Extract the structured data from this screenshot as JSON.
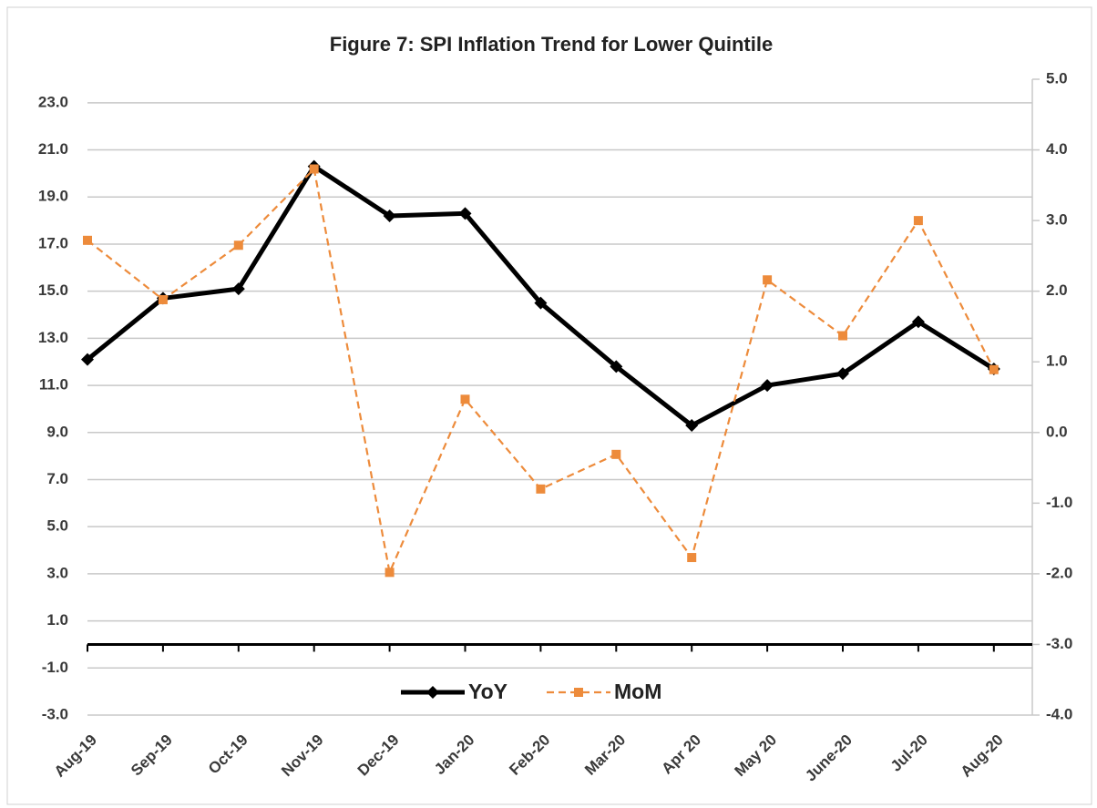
{
  "chart_data": {
    "type": "line",
    "title": "Figure 7: SPI Inflation Trend for Lower Quintile",
    "categories": [
      "Aug-19",
      "Sep-19",
      "Oct-19",
      "Nov-19",
      "Dec-19",
      "Jan-20",
      "Feb-20",
      "Mar-20",
      "Apr 20",
      "May 20",
      "June-20",
      "Jul-20",
      "Aug-20"
    ],
    "series": [
      {
        "name": "YoY",
        "color": "#000000",
        "values": [
          12.1,
          14.7,
          15.1,
          20.3,
          18.2,
          18.3,
          14.5,
          11.8,
          9.3,
          11.0,
          11.5,
          13.7,
          11.7
        ]
      },
      {
        "name": "MoM",
        "color": "#ed8b3b",
        "axis": "y2",
        "values": [
          2.72,
          1.88,
          2.65,
          3.73,
          -1.98,
          0.47,
          -0.8,
          -0.31,
          -1.77,
          2.16,
          1.37,
          3.0,
          0.89
        ]
      }
    ],
    "ylim": [
      -3,
      24
    ],
    "yticks": [
      {
        "value": 23,
        "label": "23.0"
      },
      {
        "value": 21,
        "label": "21.0"
      },
      {
        "value": 19,
        "label": "19.0"
      },
      {
        "value": 17,
        "label": "17.0"
      },
      {
        "value": 15,
        "label": "15.0"
      },
      {
        "value": 13,
        "label": "13.0"
      },
      {
        "value": 11,
        "label": "11.0"
      },
      {
        "value": 9,
        "label": "9.0"
      },
      {
        "value": 7,
        "label": "7.0"
      },
      {
        "value": 5,
        "label": "5.0"
      },
      {
        "value": 3,
        "label": "3.0"
      },
      {
        "value": 1,
        "label": "1.0"
      },
      {
        "value": -1,
        "label": "-1.0"
      },
      {
        "value": -3,
        "label": "-3.0"
      }
    ],
    "y2lim": [
      -4,
      5
    ],
    "y2ticks": [
      {
        "value": 5,
        "label": "5.0"
      },
      {
        "value": 4,
        "label": "4.0"
      },
      {
        "value": 3,
        "label": "3.0"
      },
      {
        "value": 2,
        "label": "2.0"
      },
      {
        "value": 1,
        "label": "1.0"
      },
      {
        "value": 0,
        "label": "0.0"
      },
      {
        "value": -1,
        "label": "-1.0"
      },
      {
        "value": -2,
        "label": "-2.0"
      },
      {
        "value": -3,
        "label": "-3.0"
      },
      {
        "value": -4,
        "label": "-4.0"
      }
    ],
    "grid": true,
    "legend": "bottom"
  }
}
